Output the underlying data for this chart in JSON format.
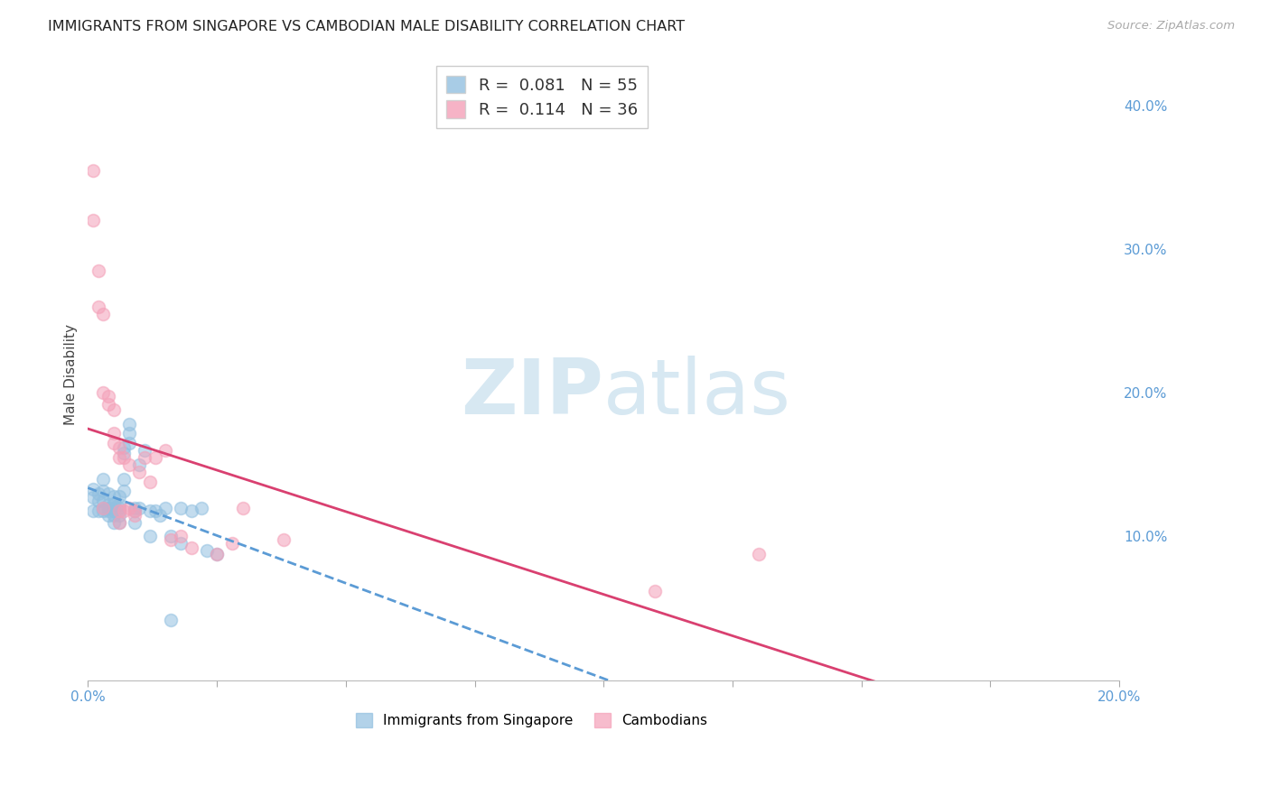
{
  "title": "IMMIGRANTS FROM SINGAPORE VS CAMBODIAN MALE DISABILITY CORRELATION CHART",
  "source": "Source: ZipAtlas.com",
  "ylabel": "Male Disability",
  "xlim": [
    0.0,
    0.2
  ],
  "ylim": [
    0.0,
    0.425
  ],
  "xticks": [
    0.0,
    0.025,
    0.05,
    0.075,
    0.1,
    0.125,
    0.15,
    0.175,
    0.2
  ],
  "xtick_labels": [
    "0.0%",
    "",
    "",
    "",
    "",
    "",
    "",
    "",
    "20.0%"
  ],
  "yticks": [
    0.1,
    0.2,
    0.3,
    0.4
  ],
  "ytick_labels": [
    "10.0%",
    "20.0%",
    "30.0%",
    "40.0%"
  ],
  "r1_val": "0.081",
  "n1_val": "55",
  "r2_val": "0.114",
  "n2_val": "36",
  "blue_color": "#92c0e0",
  "pink_color": "#f4a0b8",
  "trend_blue_color": "#5b9bd5",
  "trend_pink_color": "#d94070",
  "axis_tick_color": "#5b9bd5",
  "title_color": "#222222",
  "background_color": "#ffffff",
  "grid_color": "#cccccc",
  "watermark_color": "#d0e4f0",
  "sg_x": [
    0.001,
    0.001,
    0.001,
    0.002,
    0.002,
    0.002,
    0.003,
    0.003,
    0.003,
    0.003,
    0.003,
    0.004,
    0.004,
    0.004,
    0.004,
    0.004,
    0.005,
    0.005,
    0.005,
    0.005,
    0.005,
    0.005,
    0.005,
    0.006,
    0.006,
    0.006,
    0.006,
    0.006,
    0.006,
    0.007,
    0.007,
    0.007,
    0.007,
    0.008,
    0.008,
    0.008,
    0.009,
    0.009,
    0.009,
    0.01,
    0.01,
    0.011,
    0.012,
    0.013,
    0.014,
    0.015,
    0.016,
    0.018,
    0.02,
    0.022,
    0.023,
    0.025,
    0.012,
    0.016,
    0.018
  ],
  "sg_y": [
    0.127,
    0.133,
    0.118,
    0.13,
    0.118,
    0.125,
    0.132,
    0.14,
    0.118,
    0.12,
    0.125,
    0.115,
    0.122,
    0.13,
    0.118,
    0.12,
    0.119,
    0.123,
    0.128,
    0.118,
    0.12,
    0.115,
    0.11,
    0.118,
    0.122,
    0.128,
    0.115,
    0.12,
    0.11,
    0.132,
    0.14,
    0.158,
    0.162,
    0.165,
    0.172,
    0.178,
    0.118,
    0.12,
    0.11,
    0.15,
    0.12,
    0.16,
    0.118,
    0.118,
    0.115,
    0.12,
    0.1,
    0.12,
    0.118,
    0.12,
    0.09,
    0.088,
    0.1,
    0.042,
    0.095
  ],
  "cam_x": [
    0.001,
    0.001,
    0.002,
    0.002,
    0.003,
    0.003,
    0.003,
    0.004,
    0.004,
    0.005,
    0.005,
    0.005,
    0.006,
    0.006,
    0.006,
    0.006,
    0.007,
    0.007,
    0.008,
    0.008,
    0.009,
    0.009,
    0.01,
    0.011,
    0.012,
    0.013,
    0.015,
    0.016,
    0.018,
    0.02,
    0.025,
    0.028,
    0.03,
    0.038,
    0.11,
    0.13
  ],
  "cam_y": [
    0.355,
    0.32,
    0.285,
    0.26,
    0.255,
    0.2,
    0.12,
    0.198,
    0.192,
    0.188,
    0.172,
    0.165,
    0.162,
    0.155,
    0.118,
    0.11,
    0.155,
    0.118,
    0.15,
    0.12,
    0.115,
    0.118,
    0.145,
    0.155,
    0.138,
    0.155,
    0.16,
    0.098,
    0.1,
    0.092,
    0.088,
    0.095,
    0.12,
    0.098,
    0.062,
    0.088
  ]
}
